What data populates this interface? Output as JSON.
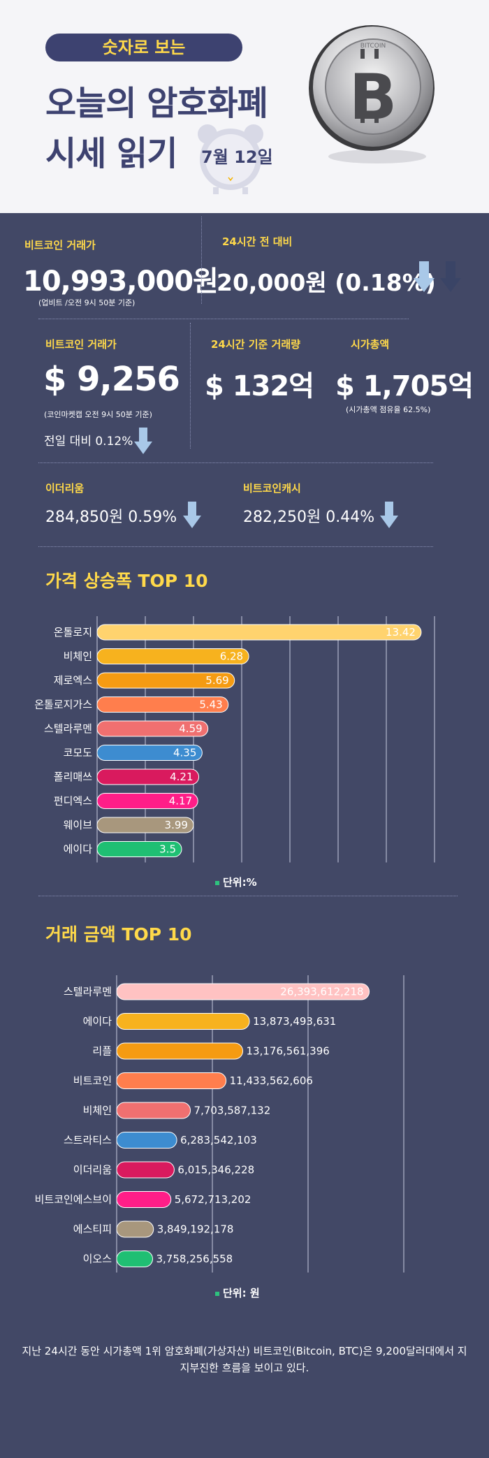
{
  "header": {
    "pill": "숫자로 보는",
    "title_line1": "오늘의 암호화폐",
    "title_line2": "시세 읽기",
    "date": "7월 12일"
  },
  "stats": {
    "btc_krw": {
      "label": "비트코인 거래가",
      "value": "10,993,000원",
      "note": "(업비트 /오전 9시 50분 기준)"
    },
    "change_24h": {
      "label": "24시간 전 대비",
      "value": "20,000원 (0.18%)"
    },
    "btc_usd": {
      "label": "비트코인 거래가",
      "value": "$ 9,256",
      "note": "(코인마켓캡 오전 9시 50분 기준)",
      "change": "전일 대비 0.12%"
    },
    "volume": {
      "label": "24시간 기준 거래량",
      "value": "$ 132억"
    },
    "market_cap": {
      "label": "시가총액",
      "value": "$ 1,705억",
      "note": "(시가총액 점유율 62.5%)"
    },
    "eth": {
      "label": "이더리움",
      "value": "284,850원  0.59%"
    },
    "bch": {
      "label": "비트코인캐시",
      "value": "282,250원  0.44%"
    }
  },
  "arrow_color": "#a9c8e8",
  "chart1_title": "가격 상승폭 TOP 10",
  "chart1_unit": "단위:%",
  "chart2_title": "거래 금액 TOP 10",
  "chart2_unit": "단위: 원",
  "footer": "지난 24시간 동안 시가총액 1위 암호화폐(가상자산) 비트코인(Bitcoin, BTC)은 9,200달러대에서 지지부진한 흐름을 보이고 있다.",
  "chart_data": [
    {
      "type": "bar",
      "orientation": "horizontal",
      "title": "가격 상승폭 TOP 10",
      "unit": "단위:%",
      "categories": [
        "온톨로지",
        "비체인",
        "제로엑스",
        "온톨로지가스",
        "스텔라루멘",
        "코모도",
        "폴리매쓰",
        "펀디엑스",
        "웨이브",
        "에이다"
      ],
      "values": [
        13.42,
        6.28,
        5.69,
        5.43,
        4.59,
        4.35,
        4.21,
        4.17,
        3.99,
        3.5
      ],
      "labels": [
        "13.42",
        "6.28",
        "5.69",
        "5.43",
        "4.59",
        "4.35",
        "4.21",
        "4.17",
        "3.99",
        "3.5"
      ],
      "colors": [
        "#ffd36e",
        "#f7b21e",
        "#f59b12",
        "#ff7e4d",
        "#f07070",
        "#3d8cd0",
        "#d91a5e",
        "#ff1e88",
        "#a8977d",
        "#1fbf73"
      ],
      "xlim": [
        0,
        14
      ],
      "grid": true
    },
    {
      "type": "bar",
      "orientation": "horizontal",
      "title": "거래 금액 TOP 10",
      "unit": "단위: 원",
      "categories": [
        "스텔라루멘",
        "에이다",
        "리플",
        "비트코인",
        "비체인",
        "스트라티스",
        "이더리움",
        "비트코인에스브이",
        "에스티피",
        "이오스"
      ],
      "values": [
        26393612218,
        13873493631,
        13176561396,
        11433562606,
        7703587132,
        6283542103,
        6015346228,
        5672713202,
        3849192178,
        3758256558
      ],
      "labels": [
        "26,393,612,218",
        "13,873,493,631",
        "13,176,561,396",
        "11,433,562,606",
        "7,703,587,132",
        "6,283,542,103",
        "6,015,346,228",
        "5,672,713,202",
        "3,849,192,178",
        "3,758,256,558"
      ],
      "colors": [
        "#ffc2c2",
        "#f7b21e",
        "#f59b12",
        "#ff7e4d",
        "#f07070",
        "#3d8cd0",
        "#d91a5e",
        "#ff1e88",
        "#a8977d",
        "#1fbf73"
      ],
      "xlim": [
        0,
        30000000000
      ],
      "grid": true
    }
  ]
}
